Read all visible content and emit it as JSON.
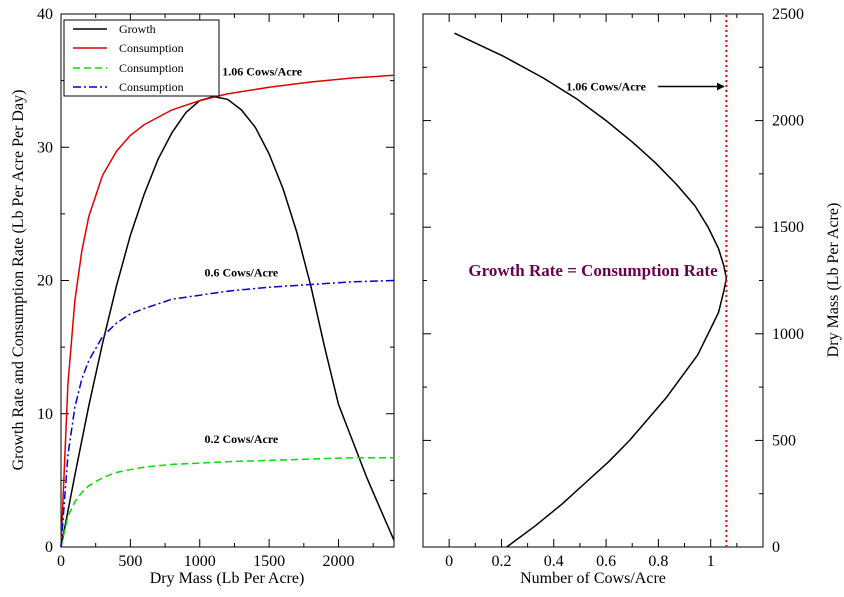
{
  "colors": {
    "growth": "#000000",
    "consumption_high": "#e00000",
    "consumption_low": "#00e000",
    "consumption_mid": "#0000d0",
    "vline": "#e00000",
    "eq_text": "#6b0050"
  },
  "chart_data": [
    {
      "type": "line",
      "xlabel": "Dry Mass (Lb Per Acre)",
      "ylabel": "Growth Rate and Consumption Rate (Lb Per Acre Per Day)",
      "xlim": [
        0,
        2400
      ],
      "ylim": [
        0,
        40
      ],
      "xticks": [
        0,
        500,
        1000,
        1500,
        2000
      ],
      "yticks": [
        0,
        10,
        20,
        30,
        40
      ],
      "grid": false,
      "legend_position": "top-left",
      "legend": [
        "Growth",
        "Consumption",
        "Consumption",
        "Consumption"
      ],
      "series": [
        {
          "name": "Growth",
          "style": "solid",
          "color": "#000000",
          "x": [
            0,
            100,
            200,
            300,
            400,
            500,
            600,
            700,
            800,
            900,
            1000,
            1100,
            1200,
            1300,
            1400,
            1500,
            1600,
            1700,
            1800,
            1900,
            2000,
            2100,
            2200,
            2300,
            2400
          ],
          "y": [
            0,
            5.4,
            10.6,
            15.3,
            19.6,
            23.4,
            26.5,
            29.1,
            31.1,
            32.6,
            33.5,
            33.8,
            33.6,
            32.8,
            31.5,
            29.5,
            26.9,
            23.6,
            19.6,
            15.0,
            10.7,
            8.0,
            5.3,
            2.9,
            0.5
          ]
        },
        {
          "name": "Consumption",
          "style": "solid",
          "color": "#e00000",
          "x": [
            0,
            50,
            100,
            150,
            200,
            300,
            400,
            500,
            600,
            800,
            1000,
            1200,
            1500,
            1800,
            2100,
            2400
          ],
          "y": [
            0,
            12.2,
            18.5,
            22.2,
            24.8,
            27.9,
            29.7,
            30.9,
            31.7,
            32.8,
            33.5,
            34.0,
            34.5,
            34.9,
            35.2,
            35.4
          ]
        },
        {
          "name": "Consumption",
          "style": "dashed",
          "color": "#00e000",
          "x": [
            0,
            50,
            100,
            150,
            200,
            300,
            400,
            500,
            600,
            800,
            1000,
            1200,
            1500,
            1800,
            2100,
            2400
          ],
          "y": [
            0,
            2.3,
            3.4,
            4.1,
            4.6,
            5.2,
            5.6,
            5.8,
            6.0,
            6.2,
            6.3,
            6.4,
            6.5,
            6.6,
            6.7,
            6.7
          ]
        },
        {
          "name": "Consumption",
          "style": "dash-dot",
          "color": "#0000d0",
          "x": [
            0,
            50,
            100,
            150,
            200,
            300,
            400,
            500,
            600,
            800,
            1000,
            1200,
            1500,
            1800,
            2100,
            2400
          ],
          "y": [
            0,
            6.9,
            10.5,
            12.6,
            14.0,
            15.8,
            16.8,
            17.5,
            17.9,
            18.6,
            18.9,
            19.2,
            19.5,
            19.7,
            19.9,
            20.0
          ]
        }
      ],
      "annotations": [
        {
          "text": "1.06 Cows/Acre",
          "x": 1450,
          "y": 35.4
        },
        {
          "text": "0.6 Cows/Acre",
          "x": 1300,
          "y": 20.3
        },
        {
          "text": "0.2 Cows/Acre",
          "x": 1300,
          "y": 7.8
        }
      ]
    },
    {
      "type": "line",
      "xlabel": "Number of Cows/Acre",
      "ylabel": "Dry Mass (Lb Per Acre)",
      "xlim": [
        -0.1,
        1.2
      ],
      "ylim": [
        0,
        2500
      ],
      "xticks": [
        0,
        0.2,
        0.4,
        0.6,
        0.8,
        1
      ],
      "xtick_labels": [
        "0",
        "0.2",
        "0.4",
        "0.6",
        "0.8",
        "1"
      ],
      "yticks": [
        0,
        500,
        1000,
        1500,
        2000,
        2500
      ],
      "grid": false,
      "series": [
        {
          "style": "solid",
          "color": "#000000",
          "x": [
            0.22,
            0.33,
            0.43,
            0.52,
            0.61,
            0.69,
            0.76,
            0.83,
            0.89,
            0.95,
            0.99,
            1.03,
            1.05,
            1.06,
            1.05,
            1.03,
            0.99,
            0.94,
            0.87,
            0.79,
            0.7,
            0.6,
            0.49,
            0.36,
            0.21,
            0.02
          ],
          "y": [
            0,
            100,
            200,
            300,
            400,
            500,
            600,
            700,
            800,
            900,
            1000,
            1100,
            1200,
            1260,
            1320,
            1400,
            1500,
            1600,
            1700,
            1800,
            1900,
            2000,
            2100,
            2200,
            2300,
            2410
          ]
        },
        {
          "style": "dotted",
          "color": "#e00000",
          "x": [
            1.06,
            1.06
          ],
          "y": [
            0,
            2500
          ]
        }
      ],
      "annotations": [
        {
          "text": "1.06 Cows/Acre",
          "x": 0.6,
          "y": 2160,
          "arrow_to": [
            1.05,
            2160
          ]
        },
        {
          "text": "Growth Rate = Consumption Rate",
          "x": 0.55,
          "y": 1270
        }
      ]
    }
  ]
}
